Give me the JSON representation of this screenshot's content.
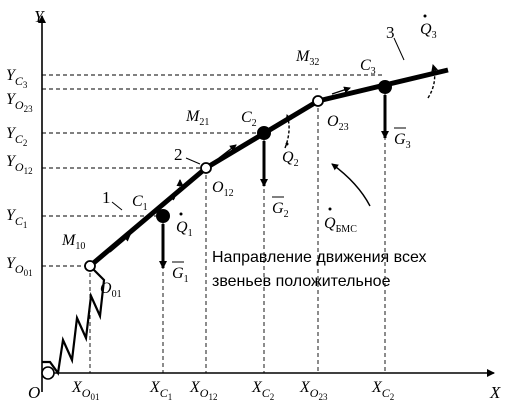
{
  "axes": {
    "y_label": "Y",
    "x_label": "X",
    "origin_label": "O"
  },
  "y_ticks": [
    {
      "main": "Y",
      "sub": "C",
      "subsub": "3"
    },
    {
      "main": "Y",
      "sub": "O",
      "subsub": "23"
    },
    {
      "main": "Y",
      "sub": "C",
      "subsub": "2"
    },
    {
      "main": "Y",
      "sub": "O",
      "subsub": "12"
    },
    {
      "main": "Y",
      "sub": "C",
      "subsub": "1"
    },
    {
      "main": "Y",
      "sub": "O",
      "subsub": "01"
    }
  ],
  "x_ticks": [
    {
      "main": "X",
      "sub": "O",
      "subsub": "01"
    },
    {
      "main": "X",
      "sub": "C",
      "subsub": "1"
    },
    {
      "main": "X",
      "sub": "O",
      "subsub": "12"
    },
    {
      "main": "X",
      "sub": "C",
      "subsub": "2"
    },
    {
      "main": "X",
      "sub": "O",
      "subsub": "23"
    },
    {
      "main": "X",
      "sub": "C",
      "subsub": "2"
    }
  ],
  "links": [
    {
      "number": "1",
      "center": "C",
      "center_sub": "1",
      "gravity": "G",
      "gravity_sub": "1",
      "velocity": "Q",
      "velocity_sub": "1"
    },
    {
      "number": "2",
      "center": "C",
      "center_sub": "2",
      "gravity": "G",
      "gravity_sub": "2",
      "velocity": "Q",
      "velocity_sub": "2"
    },
    {
      "number": "3",
      "center": "C",
      "center_sub": "3",
      "gravity": "G",
      "gravity_sub": "3",
      "velocity": "Q",
      "velocity_sub": "3"
    }
  ],
  "joints": [
    {
      "main": "O",
      "sub": "01"
    },
    {
      "main": "O",
      "sub": "12"
    },
    {
      "main": "O",
      "sub": "23"
    }
  ],
  "moments": [
    {
      "main": "M",
      "sub": "10"
    },
    {
      "main": "M",
      "sub": "21"
    },
    {
      "main": "M",
      "sub": "32"
    }
  ],
  "bms_velocity": {
    "main": "Q",
    "sub": "БМС"
  },
  "caption": {
    "line1": "Направление движения всех",
    "line2": "звеньев положительное"
  }
}
